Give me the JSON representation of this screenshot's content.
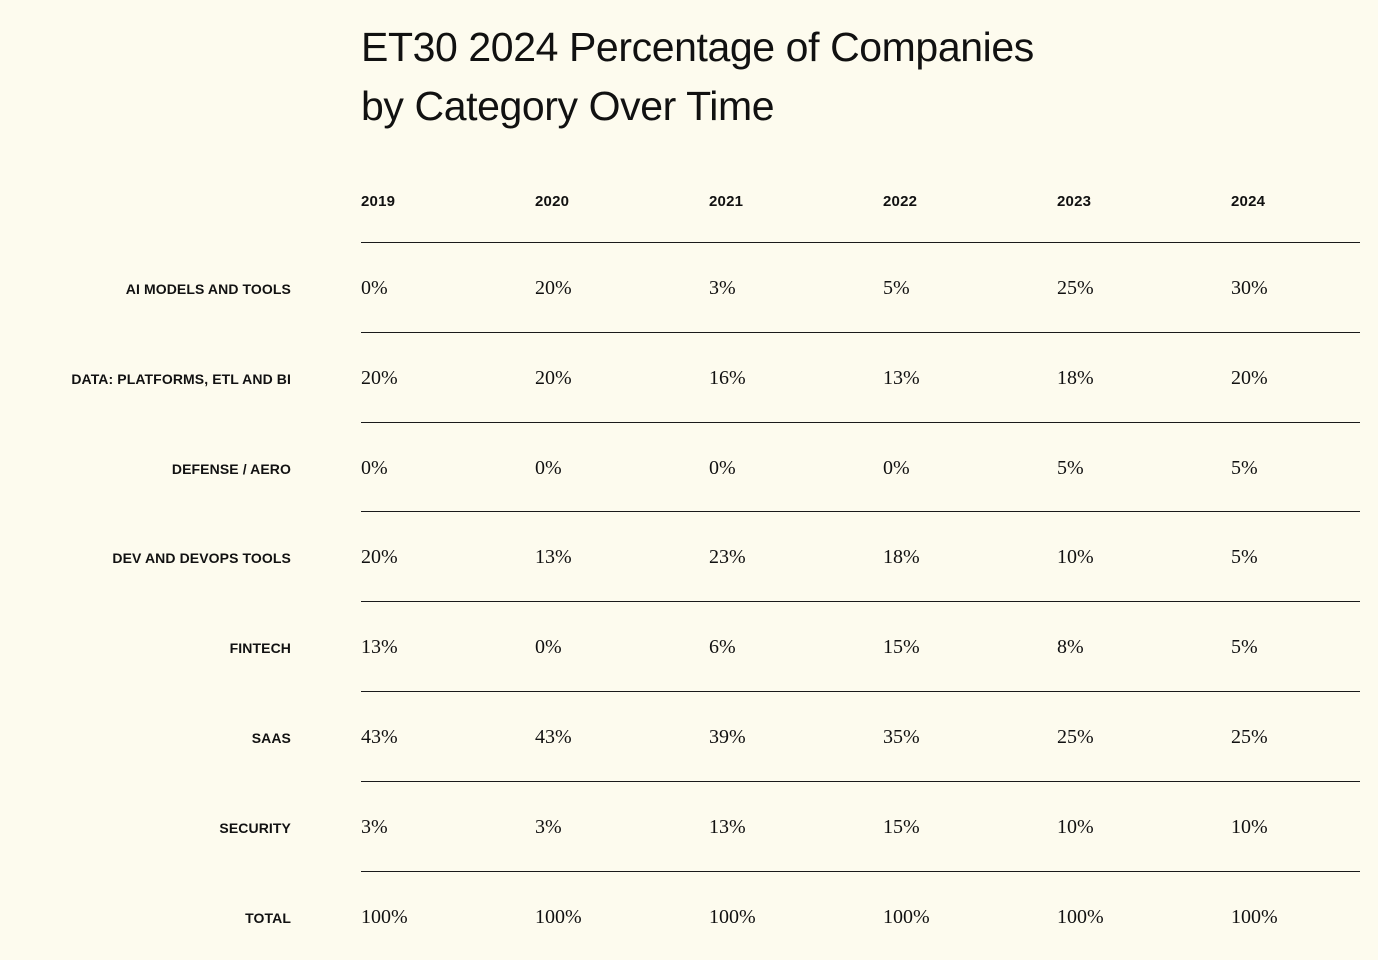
{
  "chart_data": {
    "type": "table",
    "title_lines": [
      "ET30 2024 Percentage of Companies",
      "by Category Over Time"
    ],
    "columns": [
      "2019",
      "2020",
      "2021",
      "2022",
      "2023",
      "2024"
    ],
    "rows": [
      {
        "label": "AI MODELS AND TOOLS",
        "values": [
          "0%",
          "20%",
          "3%",
          "5%",
          "25%",
          "30%"
        ]
      },
      {
        "label": "DATA: PLATFORMS, ETL AND BI",
        "values": [
          "20%",
          "20%",
          "16%",
          "13%",
          "18%",
          "20%"
        ]
      },
      {
        "label": "DEFENSE / AERO",
        "values": [
          "0%",
          "0%",
          "0%",
          "0%",
          "5%",
          "5%"
        ]
      },
      {
        "label": "DEV AND DEVOPS TOOLS",
        "values": [
          "20%",
          "13%",
          "23%",
          "18%",
          "10%",
          "5%"
        ]
      },
      {
        "label": "FINTECH",
        "values": [
          "13%",
          "0%",
          "6%",
          "15%",
          "8%",
          "5%"
        ]
      },
      {
        "label": "SAAS",
        "values": [
          "43%",
          "43%",
          "39%",
          "35%",
          "25%",
          "25%"
        ]
      },
      {
        "label": "SECURITY",
        "values": [
          "3%",
          "3%",
          "13%",
          "15%",
          "10%",
          "10%"
        ]
      },
      {
        "label": "TOTAL",
        "values": [
          "100%",
          "100%",
          "100%",
          "100%",
          "100%",
          "100%"
        ]
      }
    ]
  },
  "colors": {
    "background": "#fdfbee",
    "text": "#111111",
    "rule": "#1a1a1a"
  }
}
